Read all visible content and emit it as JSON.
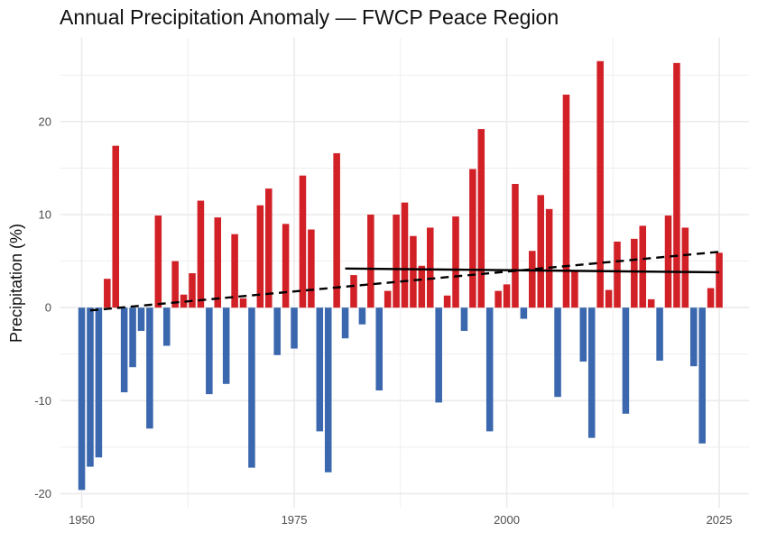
{
  "chart_data": {
    "type": "bar",
    "title": "Annual Precipitation Anomaly — FWCP Peace Region",
    "xlabel": "",
    "ylabel": "Precipitation (%)",
    "xlim": [
      1947.5,
      2028.5
    ],
    "ylim": [
      -21.5,
      29
    ],
    "x_ticks": [
      1950,
      1975,
      2000,
      2025
    ],
    "y_ticks": [
      -20,
      -10,
      0,
      10,
      20
    ],
    "grid": true,
    "colors": {
      "positive": "#d22027",
      "negative": "#3a67ad",
      "grid": "#ebebeb",
      "trend": "#000000"
    },
    "x": [
      1950,
      1951,
      1952,
      1953,
      1954,
      1955,
      1956,
      1957,
      1958,
      1959,
      1960,
      1961,
      1962,
      1963,
      1964,
      1965,
      1966,
      1967,
      1968,
      1969,
      1970,
      1971,
      1972,
      1973,
      1974,
      1975,
      1976,
      1977,
      1978,
      1979,
      1980,
      1981,
      1982,
      1983,
      1984,
      1985,
      1986,
      1987,
      1988,
      1989,
      1990,
      1991,
      1992,
      1993,
      1994,
      1995,
      1996,
      1997,
      1998,
      1999,
      2000,
      2001,
      2002,
      2003,
      2004,
      2005,
      2006,
      2007,
      2008,
      2009,
      2010,
      2011,
      2012,
      2013,
      2014,
      2015,
      2016,
      2017,
      2018,
      2019,
      2020,
      2021,
      2022,
      2023,
      2024,
      2025
    ],
    "values": [
      -19.6,
      -17.1,
      -16.1,
      3.1,
      17.4,
      -9.1,
      -6.4,
      -2.5,
      -13.0,
      9.9,
      -4.1,
      5.0,
      1.4,
      3.7,
      11.5,
      -9.3,
      9.7,
      -8.2,
      7.9,
      1.0,
      -17.2,
      11.0,
      12.8,
      -5.1,
      9.0,
      -4.4,
      14.2,
      8.4,
      -13.3,
      -17.7,
      16.6,
      -3.3,
      3.5,
      -1.8,
      10.0,
      -8.9,
      1.8,
      10.0,
      11.3,
      7.7,
      4.5,
      8.6,
      -10.2,
      1.3,
      9.8,
      -2.5,
      14.9,
      19.2,
      -13.3,
      1.8,
      2.5,
      13.3,
      -1.2,
      6.1,
      12.1,
      10.6,
      -9.6,
      22.9,
      4.0,
      -5.8,
      -14.0,
      26.5,
      1.9,
      7.1,
      -11.4,
      7.4,
      8.8,
      0.9,
      -5.7,
      9.9,
      26.3,
      8.6,
      -6.3,
      -14.6,
      2.1,
      5.9
    ],
    "trend_lines": [
      {
        "style": "dashed",
        "x": [
          1951,
          2025
        ],
        "y": [
          -0.3,
          6.0
        ]
      },
      {
        "style": "solid",
        "x": [
          1981,
          2025
        ],
        "y": [
          4.2,
          3.8
        ]
      }
    ]
  }
}
